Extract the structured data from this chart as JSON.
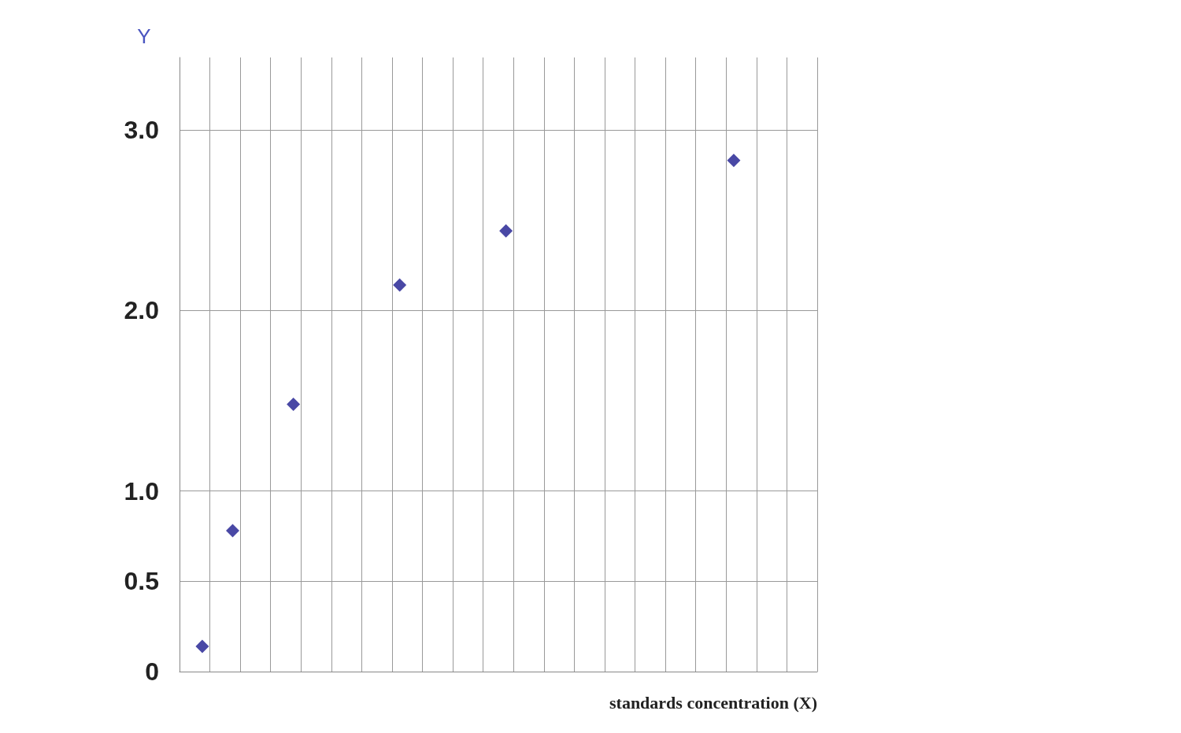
{
  "chart_data": {
    "type": "scatter",
    "xlabel": "standards concentration (X)",
    "ylabel": "Y",
    "categories": [
      null,
      null,
      null,
      null,
      null,
      null,
      null,
      null,
      null,
      null,
      null,
      null,
      null,
      null,
      null,
      null,
      null,
      null,
      null,
      null,
      null,
      null,
      null,
      null,
      null,
      null,
      null,
      null,
      null,
      null,
      null,
      null,
      null,
      null,
      null,
      null,
      null,
      null,
      null,
      null,
      null,
      null
    ],
    "values": [
      null,
      0.14,
      null,
      0.78,
      null,
      null,
      null,
      1.48,
      null,
      null,
      null,
      null,
      null,
      null,
      2.14,
      null,
      null,
      null,
      null,
      null,
      null,
      2.44,
      null,
      null,
      null,
      null,
      null,
      null,
      null,
      null,
      null,
      null,
      null,
      null,
      null,
      null,
      2.83,
      null,
      null,
      null,
      null,
      null
    ],
    "color": "#1c1a8e",
    "marker": "diamond",
    "ylim": [
      0,
      3.4
    ],
    "yticks": [
      {
        "value": 0,
        "label": "0"
      },
      {
        "value": 0.5,
        "label": "0.5"
      },
      {
        "value": 1,
        "label": "1.0"
      },
      {
        "value": 2,
        "label": "2.0"
      },
      {
        "value": 3,
        "label": "3.0"
      }
    ],
    "grid": true,
    "tick_labels": "y"
  }
}
